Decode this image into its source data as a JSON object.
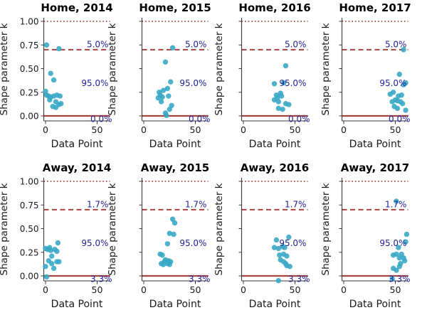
{
  "figure": {
    "background": "#ffffff",
    "rows": 2,
    "cols": 4
  },
  "style": {
    "point_color": "#38a9c5",
    "line_color": "#a84440",
    "annotation_color": "#22229b",
    "tick_text_color": "#1a1a1a",
    "title_color": "#000000",
    "spine_color": "#3a3a3a"
  },
  "chart_data": [
    {
      "type": "scatter",
      "title": "Home, 2014",
      "xlabel": "Data Point",
      "ylabel": "Shape parameter k",
      "xlim": [
        -1.5,
        62
      ],
      "ylim": [
        -0.053,
        1.038
      ],
      "xticks": [
        0,
        50
      ],
      "xtick_labels": [
        "0",
        "50"
      ],
      "yticks": [
        0,
        0.25,
        0.5,
        0.75,
        1.0
      ],
      "ytick_labels": [
        "0.00",
        "0.25",
        "0.50",
        "0.75",
        "1.00"
      ],
      "ytick_labels_visible": true,
      "grid": false,
      "hlines": [
        {
          "y": 1.0,
          "style": "dotted"
        },
        {
          "y": 0.7,
          "style": "dashed"
        },
        {
          "y": 0.0,
          "style": "solid"
        }
      ],
      "annotations": [
        {
          "text": "5.0%",
          "x": 61,
          "y": 0.725
        },
        {
          "text": "95.0%",
          "x": 61,
          "y": 0.315
        },
        {
          "text": "0.0%",
          "x": 64.5,
          "y": -0.065
        }
      ],
      "points": [
        [
          1,
          0.75
        ],
        [
          13,
          0.71
        ],
        [
          5,
          0.45
        ],
        [
          8,
          0.38
        ],
        [
          0,
          0.26
        ],
        [
          1,
          0.22
        ],
        [
          3,
          0.21
        ],
        [
          5,
          0.2
        ],
        [
          8,
          0.21
        ],
        [
          11,
          0.22
        ],
        [
          14,
          0.21
        ],
        [
          4,
          0.17
        ],
        [
          10,
          0.15
        ],
        [
          13,
          0.12
        ],
        [
          7,
          0.1
        ],
        [
          10,
          0.09
        ],
        [
          15,
          0.13
        ]
      ]
    },
    {
      "type": "scatter",
      "title": "Home, 2015",
      "xlabel": "Data Point",
      "ylabel": "Shape parameter k",
      "xlim": [
        -1.5,
        62
      ],
      "ylim": [
        -0.053,
        1.038
      ],
      "xticks": [
        0,
        50
      ],
      "xtick_labels": [
        "0",
        "50"
      ],
      "yticks": [
        0,
        0.25,
        0.5,
        0.75,
        1.0
      ],
      "ytick_labels": [
        "0.00",
        "0.25",
        "0.50",
        "0.75",
        "1.00"
      ],
      "ytick_labels_visible": false,
      "grid": false,
      "hlines": [
        {
          "y": 1.0,
          "style": "dotted"
        },
        {
          "y": 0.7,
          "style": "dashed"
        },
        {
          "y": 0.0,
          "style": "solid"
        }
      ],
      "annotations": [
        {
          "text": "5.0%",
          "x": 61,
          "y": 0.725
        },
        {
          "text": "95.0%",
          "x": 61,
          "y": 0.315
        },
        {
          "text": "0.0%",
          "x": 64.5,
          "y": -0.065
        }
      ],
      "points": [
        [
          28,
          0.72
        ],
        [
          21,
          0.57
        ],
        [
          26,
          0.36
        ],
        [
          23,
          0.29
        ],
        [
          19,
          0.27
        ],
        [
          15,
          0.25
        ],
        [
          16,
          0.22
        ],
        [
          18,
          0.2
        ],
        [
          24,
          0.21
        ],
        [
          14,
          0.19
        ],
        [
          17,
          0.15
        ],
        [
          27,
          0.11
        ],
        [
          25,
          0.07
        ],
        [
          21,
          0.03
        ],
        [
          22,
          0.005
        ]
      ]
    },
    {
      "type": "scatter",
      "title": "Home, 2016",
      "xlabel": "Data Point",
      "ylabel": "Shape parameter k",
      "xlim": [
        -1.5,
        62
      ],
      "ylim": [
        -0.053,
        1.038
      ],
      "xticks": [
        0,
        50
      ],
      "xtick_labels": [
        "0",
        "50"
      ],
      "yticks": [
        0,
        0.25,
        0.5,
        0.75,
        1.0
      ],
      "ytick_labels": [
        "0.00",
        "0.25",
        "0.50",
        "0.75",
        "1.00"
      ],
      "ytick_labels_visible": false,
      "grid": false,
      "hlines": [
        {
          "y": 1.0,
          "style": "dotted"
        },
        {
          "y": 0.7,
          "style": "dashed"
        },
        {
          "y": 0.0,
          "style": "solid"
        }
      ],
      "annotations": [
        {
          "text": "5.0%",
          "x": 61,
          "y": 0.725
        },
        {
          "text": "95.0%",
          "x": 61,
          "y": 0.315
        },
        {
          "text": "0.0%",
          "x": 64.5,
          "y": -0.065
        }
      ],
      "points": [
        [
          41,
          0.53
        ],
        [
          30,
          0.34
        ],
        [
          39,
          0.35
        ],
        [
          36,
          0.24
        ],
        [
          32,
          0.22
        ],
        [
          37,
          0.21
        ],
        [
          33,
          0.19
        ],
        [
          30,
          0.17
        ],
        [
          34,
          0.15
        ],
        [
          41,
          0.13
        ],
        [
          44,
          0.12
        ],
        [
          34,
          0.08
        ],
        [
          38,
          0.07
        ]
      ]
    },
    {
      "type": "scatter",
      "title": "Home, 2017",
      "xlabel": "Data Point",
      "ylabel": "Shape parameter k",
      "xlim": [
        -1.5,
        62
      ],
      "ylim": [
        -0.053,
        1.038
      ],
      "xticks": [
        0,
        50
      ],
      "xtick_labels": [
        "0",
        "50"
      ],
      "yticks": [
        0,
        0.25,
        0.5,
        0.75,
        1.0
      ],
      "ytick_labels": [
        "0.00",
        "0.25",
        "0.50",
        "0.75",
        "1.00"
      ],
      "ytick_labels_visible": false,
      "grid": false,
      "hlines": [
        {
          "y": 1.0,
          "style": "dotted"
        },
        {
          "y": 0.7,
          "style": "dashed"
        },
        {
          "y": 0.0,
          "style": "solid"
        }
      ],
      "annotations": [
        {
          "text": "5.0%",
          "x": 61,
          "y": 0.725
        },
        {
          "text": "95.0%",
          "x": 61,
          "y": 0.315
        },
        {
          "text": "0.0%",
          "x": 64.5,
          "y": -0.065
        }
      ],
      "points": [
        [
          58,
          0.7
        ],
        [
          54,
          0.44
        ],
        [
          60,
          0.35
        ],
        [
          58,
          0.33
        ],
        [
          48,
          0.25
        ],
        [
          45,
          0.23
        ],
        [
          53,
          0.21
        ],
        [
          56,
          0.22
        ],
        [
          50,
          0.17
        ],
        [
          47,
          0.15
        ],
        [
          52,
          0.16
        ],
        [
          55,
          0.15
        ],
        [
          57,
          0.13
        ],
        [
          52,
          0.08
        ],
        [
          60,
          0.06
        ],
        [
          49,
          0.1
        ]
      ]
    },
    {
      "type": "scatter",
      "title": "Away, 2014",
      "xlabel": "Data Point",
      "ylabel": "Shape parameter k",
      "xlim": [
        -1.5,
        62
      ],
      "ylim": [
        -0.053,
        1.038
      ],
      "xticks": [
        0,
        50
      ],
      "xtick_labels": [
        "0",
        "50"
      ],
      "yticks": [
        0,
        0.25,
        0.5,
        0.75,
        1.0
      ],
      "ytick_labels": [
        "0.00",
        "0.25",
        "0.50",
        "0.75",
        "1.00"
      ],
      "ytick_labels_visible": true,
      "grid": false,
      "hlines": [
        {
          "y": 1.0,
          "style": "dotted"
        },
        {
          "y": 0.7,
          "style": "dashed"
        },
        {
          "y": 0.0,
          "style": "solid"
        }
      ],
      "annotations": [
        {
          "text": "1.7%",
          "x": 61,
          "y": 0.725
        },
        {
          "text": "95.0%",
          "x": 61,
          "y": 0.315
        },
        {
          "text": "3.3%",
          "x": 64.5,
          "y": -0.065
        }
      ],
      "points": [
        [
          12,
          0.35
        ],
        [
          0,
          0.29
        ],
        [
          2,
          0.28
        ],
        [
          4,
          0.3
        ],
        [
          5,
          0.27
        ],
        [
          9,
          0.28
        ],
        [
          11,
          0.26
        ],
        [
          6,
          0.21
        ],
        [
          3,
          0.16
        ],
        [
          6,
          0.13
        ],
        [
          11,
          0.15
        ],
        [
          13,
          0.15
        ],
        [
          0,
          0.1
        ],
        [
          8,
          0.08
        ],
        [
          1,
          -0.01
        ]
      ]
    },
    {
      "type": "scatter",
      "title": "Away, 2015",
      "xlabel": "Data Point",
      "ylabel": "Shape parameter k",
      "xlim": [
        -1.5,
        62
      ],
      "ylim": [
        -0.053,
        1.038
      ],
      "xticks": [
        0,
        50
      ],
      "xtick_labels": [
        "0",
        "50"
      ],
      "yticks": [
        0,
        0.25,
        0.5,
        0.75,
        1.0
      ],
      "ytick_labels": [
        "0.00",
        "0.25",
        "0.50",
        "0.75",
        "1.00"
      ],
      "ytick_labels_visible": false,
      "grid": false,
      "hlines": [
        {
          "y": 1.0,
          "style": "dotted"
        },
        {
          "y": 0.7,
          "style": "dashed"
        },
        {
          "y": 0.0,
          "style": "solid"
        }
      ],
      "annotations": [
        {
          "text": "1.7%",
          "x": 61,
          "y": 0.725
        },
        {
          "text": "95.0%",
          "x": 61,
          "y": 0.315
        },
        {
          "text": "3.3%",
          "x": 64.5,
          "y": -0.065
        }
      ],
      "points": [
        [
          28,
          0.6
        ],
        [
          30,
          0.56
        ],
        [
          25,
          0.45
        ],
        [
          29,
          0.44
        ],
        [
          23,
          0.34
        ],
        [
          16,
          0.23
        ],
        [
          18,
          0.22
        ],
        [
          21,
          0.17
        ],
        [
          24,
          0.16
        ],
        [
          26,
          0.15
        ],
        [
          20,
          0.15
        ],
        [
          17,
          0.13
        ],
        [
          19,
          0.12
        ],
        [
          23,
          0.13
        ],
        [
          25,
          0.12
        ]
      ]
    },
    {
      "type": "scatter",
      "title": "Away, 2016",
      "xlabel": "Data Point",
      "ylabel": "Shape parameter k",
      "xlim": [
        -1.5,
        62
      ],
      "ylim": [
        -0.053,
        1.038
      ],
      "xticks": [
        0,
        50
      ],
      "xtick_labels": [
        "0",
        "50"
      ],
      "yticks": [
        0,
        0.25,
        0.5,
        0.75,
        1.0
      ],
      "ytick_labels": [
        "0.00",
        "0.25",
        "0.50",
        "0.75",
        "1.00"
      ],
      "ytick_labels_visible": false,
      "grid": false,
      "hlines": [
        {
          "y": 1.0,
          "style": "dotted"
        },
        {
          "y": 0.7,
          "style": "dashed"
        },
        {
          "y": 0.0,
          "style": "solid"
        }
      ],
      "annotations": [
        {
          "text": "1.7%",
          "x": 61,
          "y": 0.725
        },
        {
          "text": "95.0%",
          "x": 61,
          "y": 0.315
        },
        {
          "text": "3.3%",
          "x": 64.5,
          "y": -0.065
        }
      ],
      "points": [
        [
          32,
          0.38
        ],
        [
          44,
          0.41
        ],
        [
          30,
          0.3
        ],
        [
          34,
          0.29
        ],
        [
          38,
          0.31
        ],
        [
          40,
          0.3
        ],
        [
          35,
          0.22
        ],
        [
          39,
          0.23
        ],
        [
          42,
          0.21
        ],
        [
          36,
          0.17
        ],
        [
          39,
          0.15
        ],
        [
          41,
          0.13
        ],
        [
          42,
          0.11
        ],
        [
          45,
          0.1
        ],
        [
          34,
          -0.05
        ]
      ]
    },
    {
      "type": "scatter",
      "title": "Away, 2017",
      "xlabel": "Data Point",
      "ylabel": "Shape parameter k",
      "xlim": [
        -1.5,
        62
      ],
      "ylim": [
        -0.053,
        1.038
      ],
      "xticks": [
        0,
        50
      ],
      "xtick_labels": [
        "0",
        "50"
      ],
      "yticks": [
        0,
        0.25,
        0.5,
        0.75,
        1.0
      ],
      "ytick_labels": [
        "0.00",
        "0.25",
        "0.50",
        "0.75",
        "1.00"
      ],
      "ytick_labels_visible": false,
      "grid": false,
      "hlines": [
        {
          "y": 1.0,
          "style": "dotted"
        },
        {
          "y": 0.7,
          "style": "dashed"
        },
        {
          "y": 0.0,
          "style": "solid"
        }
      ],
      "annotations": [
        {
          "text": "1.7%",
          "x": 61,
          "y": 0.725
        },
        {
          "text": "95.0%",
          "x": 61,
          "y": 0.315
        },
        {
          "text": "3.3%",
          "x": 64.5,
          "y": -0.065
        }
      ],
      "points": [
        [
          51,
          0.79
        ],
        [
          61,
          0.44
        ],
        [
          60,
          0.36
        ],
        [
          53,
          0.3
        ],
        [
          48,
          0.22
        ],
        [
          51,
          0.23
        ],
        [
          56,
          0.23
        ],
        [
          54,
          0.19
        ],
        [
          58,
          0.19
        ],
        [
          59,
          0.16
        ],
        [
          55,
          0.13
        ],
        [
          54,
          0.1
        ],
        [
          48,
          0.08
        ],
        [
          51,
          0.06
        ],
        [
          47,
          -0.03
        ]
      ]
    }
  ]
}
